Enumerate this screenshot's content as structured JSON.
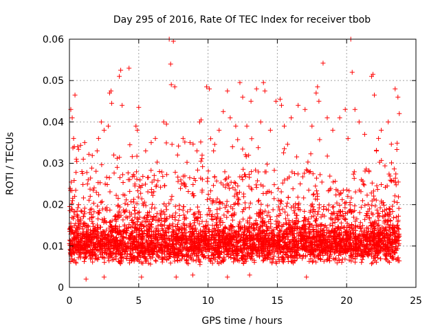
{
  "chart_data": {
    "type": "scatter",
    "title": "Day 295 of 2016, Rate Of TEC Index for receiver tbob",
    "xlabel": "GPS time / hours",
    "ylabel": "ROTI / TECUs",
    "xlim": [
      0,
      25
    ],
    "ylim": [
      0,
      0.06
    ],
    "x_ticks": [
      0,
      5,
      10,
      15,
      20,
      25
    ],
    "x_tick_labels": [
      "0",
      "5",
      "10",
      "15",
      "20",
      "25"
    ],
    "y_ticks": [
      0,
      0.01,
      0.02,
      0.03,
      0.04,
      0.05,
      0.06
    ],
    "y_tick_labels": [
      "0",
      "0.01",
      "0.02",
      "0.03",
      "0.04",
      "0.05",
      "0.06"
    ],
    "grid": true,
    "marker": "+",
    "marker_color": "#ff0000",
    "x_data_range": [
      0,
      23.8
    ],
    "series": [
      {
        "name": "ROTI",
        "description_values": "dense point cloud, bulk 0.004-0.015, frequent spikes to 0.03-0.06",
        "points": [
          [
            0.1,
            0.043
          ],
          [
            0.2,
            0.041
          ],
          [
            0.3,
            0.036
          ],
          [
            0.35,
            0.034
          ],
          [
            0.4,
            0.0465
          ],
          [
            0.5,
            0.031
          ],
          [
            0.9,
            0.028
          ],
          [
            1.0,
            0.031
          ],
          [
            1.1,
            0.035
          ],
          [
            1.3,
            0.025
          ],
          [
            1.5,
            0.022
          ],
          [
            2.0,
            0.033
          ],
          [
            2.1,
            0.036
          ],
          [
            2.3,
            0.04
          ],
          [
            2.5,
            0.038
          ],
          [
            2.8,
            0.039
          ],
          [
            2.9,
            0.047
          ],
          [
            3.0,
            0.0475
          ],
          [
            3.05,
            0.0445
          ],
          [
            3.2,
            0.032
          ],
          [
            3.6,
            0.051
          ],
          [
            3.7,
            0.0525
          ],
          [
            3.8,
            0.044
          ],
          [
            4.3,
            0.053
          ],
          [
            4.8,
            0.039
          ],
          [
            4.9,
            0.038
          ],
          [
            5.0,
            0.0435
          ],
          [
            5.5,
            0.033
          ],
          [
            5.9,
            0.035
          ],
          [
            6.2,
            0.036
          ],
          [
            6.5,
            0.028
          ],
          [
            6.8,
            0.04
          ],
          [
            7.0,
            0.0395
          ],
          [
            7.2,
            0.06
          ],
          [
            7.3,
            0.054
          ],
          [
            7.35,
            0.049
          ],
          [
            7.5,
            0.0595
          ],
          [
            7.6,
            0.0485
          ],
          [
            7.8,
            0.032
          ],
          [
            8.2,
            0.036
          ],
          [
            8.7,
            0.035
          ],
          [
            9.2,
            0.033
          ],
          [
            9.4,
            0.04
          ],
          [
            9.5,
            0.0405
          ],
          [
            9.9,
            0.0485
          ],
          [
            10.1,
            0.048
          ],
          [
            10.4,
            0.033
          ],
          [
            10.8,
            0.038
          ],
          [
            11.1,
            0.0425
          ],
          [
            11.4,
            0.0475
          ],
          [
            11.6,
            0.041
          ],
          [
            12.0,
            0.039
          ],
          [
            12.3,
            0.0495
          ],
          [
            12.5,
            0.046
          ],
          [
            12.8,
            0.039
          ],
          [
            13.1,
            0.045
          ],
          [
            13.5,
            0.048
          ],
          [
            13.8,
            0.04
          ],
          [
            14.0,
            0.0495
          ],
          [
            14.1,
            0.0475
          ],
          [
            14.5,
            0.038
          ],
          [
            14.9,
            0.045
          ],
          [
            15.2,
            0.0455
          ],
          [
            15.3,
            0.044
          ],
          [
            15.5,
            0.039
          ],
          [
            16.0,
            0.041
          ],
          [
            16.5,
            0.044
          ],
          [
            17.0,
            0.043
          ],
          [
            17.5,
            0.039
          ],
          [
            17.8,
            0.047
          ],
          [
            17.9,
            0.0485
          ],
          [
            18.0,
            0.045
          ],
          [
            18.3,
            0.0542
          ],
          [
            18.6,
            0.041
          ],
          [
            19.0,
            0.038
          ],
          [
            19.5,
            0.041
          ],
          [
            19.9,
            0.043
          ],
          [
            20.1,
            0.036
          ],
          [
            20.3,
            0.06
          ],
          [
            20.4,
            0.052
          ],
          [
            20.6,
            0.043
          ],
          [
            20.9,
            0.04
          ],
          [
            21.3,
            0.037
          ],
          [
            21.8,
            0.051
          ],
          [
            21.9,
            0.0515
          ],
          [
            22.0,
            0.0465
          ],
          [
            22.3,
            0.036
          ],
          [
            22.5,
            0.038
          ],
          [
            23.0,
            0.04
          ],
          [
            23.5,
            0.048
          ],
          [
            23.7,
            0.046
          ],
          [
            23.8,
            0.042
          ],
          [
            1.2,
            0.002
          ],
          [
            2.5,
            0.0025
          ],
          [
            5.2,
            0.0025
          ],
          [
            7.7,
            0.0025
          ],
          [
            8.9,
            0.003
          ],
          [
            11.4,
            0.0025
          ],
          [
            13.0,
            0.003
          ],
          [
            17.1,
            0.0025
          ]
        ]
      }
    ]
  }
}
